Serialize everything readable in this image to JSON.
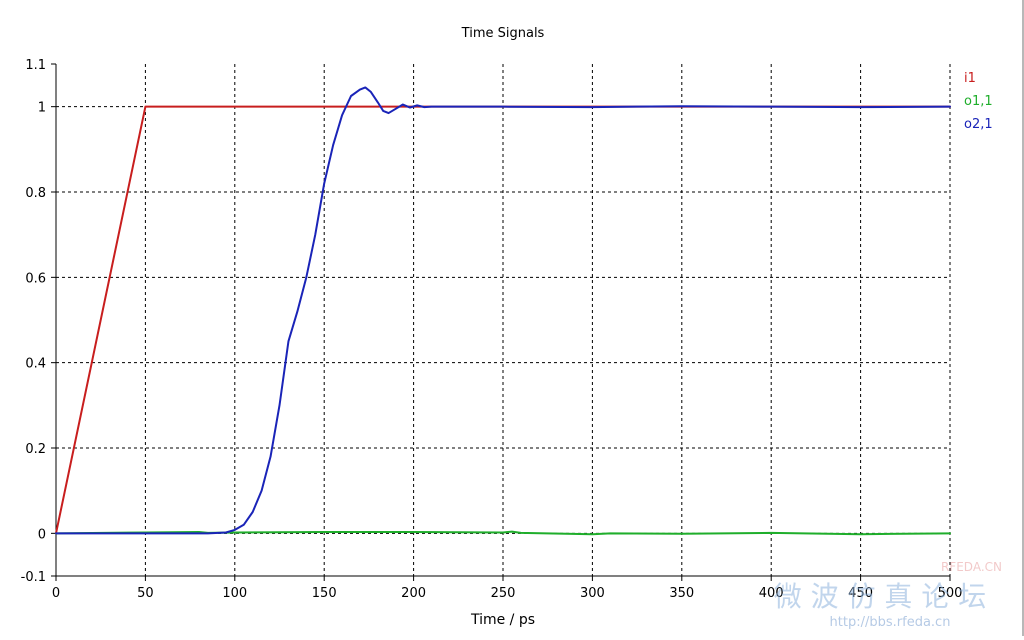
{
  "chart_data": {
    "type": "line",
    "title": "Time Signals",
    "xlabel": "Time / ps",
    "ylabel": "",
    "xlim": [
      0,
      500
    ],
    "ylim": [
      -0.1,
      1.1
    ],
    "x_ticks": [
      0,
      50,
      100,
      150,
      200,
      250,
      300,
      350,
      400,
      450,
      500
    ],
    "x_tick_labels": [
      "0",
      "50",
      "100",
      "150",
      "200",
      "250",
      "300",
      "350",
      "400",
      "450",
      "500"
    ],
    "y_ticks": [
      -0.1,
      0,
      0.2,
      0.4,
      0.6,
      0.8,
      1,
      1.1
    ],
    "y_tick_labels": [
      "-0.1",
      "0",
      "0.2",
      "0.4",
      "0.6",
      "0.8",
      "1",
      "1.1"
    ],
    "grid": true,
    "legend_position": "right",
    "series": [
      {
        "name": "i1",
        "color": "#c81e1e",
        "x": [
          0,
          50,
          500
        ],
        "y": [
          0,
          1,
          1
        ]
      },
      {
        "name": "o1,1",
        "color": "#1fae2b",
        "x": [
          0,
          50,
          80,
          85,
          100,
          150,
          200,
          250,
          255,
          260,
          300,
          310,
          350,
          400,
          450,
          500
        ],
        "y": [
          0,
          0.002,
          0.003,
          0.001,
          0.002,
          0.003,
          0.003,
          0.002,
          0.004,
          0.001,
          -0.002,
          0,
          -0.001,
          0.001,
          -0.002,
          0
        ]
      },
      {
        "name": "o2,1",
        "color": "#1a24b8",
        "x": [
          0,
          85,
          95,
          100,
          105,
          110,
          115,
          120,
          125,
          130,
          135,
          140,
          145,
          150,
          155,
          160,
          165,
          170,
          173,
          176,
          180,
          183,
          186,
          190,
          194,
          198,
          202,
          206,
          210,
          250,
          300,
          350,
          400,
          450,
          500
        ],
        "y": [
          0,
          0,
          0.002,
          0.008,
          0.02,
          0.05,
          0.1,
          0.18,
          0.3,
          0.45,
          0.52,
          0.6,
          0.7,
          0.82,
          0.91,
          0.98,
          1.025,
          1.04,
          1.045,
          1.035,
          1.01,
          0.99,
          0.985,
          0.995,
          1.005,
          0.998,
          1.003,
          0.999,
          1.0,
          1.0,
          0.999,
          1.001,
          1.0,
          0.999,
          1.0
        ]
      }
    ]
  },
  "watermark": {
    "main": "微 波 仿 真 论 坛",
    "url": "http://bbs.rfeda.cn",
    "brand": "RFEDA.CN"
  },
  "colors": {
    "grid": "#000000",
    "axis": "#000000",
    "background": "#ffffff"
  }
}
